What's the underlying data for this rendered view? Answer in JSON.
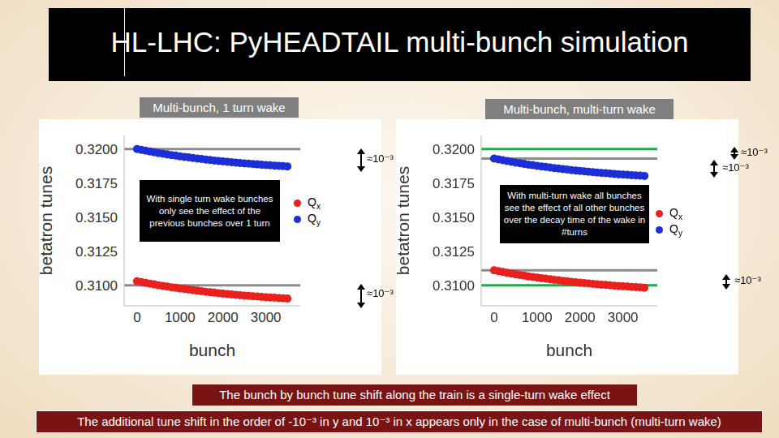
{
  "title": "HL-LHC: PyHEADTAIL multi-bunch simulation",
  "captions": [
    "The bunch by bunch tune shift along the train is a single-turn wake effect",
    "The additional tune shift in the order of -10⁻³ in y and 10⁻³ in x appears only in the case of multi-bunch (multi-turn wake)"
  ],
  "chart_data": [
    {
      "type": "scatter",
      "panel_label": "Multi-bunch, 1 turn wake",
      "xlabel": "bunch",
      "ylabel": "betatron tunes",
      "xlim": [
        -300,
        3800
      ],
      "ylim": [
        0.3085,
        0.321
      ],
      "xticks": [
        0,
        1000,
        2000,
        3000
      ],
      "yticks": [
        {
          "value": 0.31,
          "label": "0.3100"
        },
        {
          "value": 0.3125,
          "label": "0.3125"
        },
        {
          "value": 0.315,
          "label": "0.3150"
        },
        {
          "value": 0.3175,
          "label": "0.3175"
        },
        {
          "value": 0.32,
          "label": "0.3200"
        }
      ],
      "text_box": "With single turn wake bunches only see the effect of the previous bunches over 1 turn",
      "annotations": [
        "≈10⁻³",
        "≈10⁻³"
      ],
      "reference_lines": [
        {
          "y": 0.32,
          "color": "#8c8c8c"
        },
        {
          "y": 0.31,
          "color": "#8c8c8c"
        }
      ],
      "x": [
        0,
        100,
        200,
        300,
        400,
        500,
        600,
        700,
        800,
        900,
        1000,
        1100,
        1200,
        1300,
        1400,
        1500,
        1600,
        1700,
        1800,
        1900,
        2000,
        2100,
        2200,
        2300,
        2400,
        2500,
        2600,
        2700,
        2800,
        2900,
        3000,
        3100,
        3200,
        3300,
        3400,
        3500
      ],
      "series": [
        {
          "name": "Qx",
          "color": "#e8201e",
          "marker": "circle",
          "values": [
            0.3103,
            0.31024,
            0.31018,
            0.31012,
            0.31007,
            0.31001,
            0.30996,
            0.30991,
            0.30986,
            0.30982,
            0.30977,
            0.30973,
            0.30969,
            0.30965,
            0.30961,
            0.30957,
            0.30953,
            0.3095,
            0.30946,
            0.30943,
            0.3094,
            0.30937,
            0.30934,
            0.30931,
            0.30928,
            0.30925,
            0.30923,
            0.3092,
            0.30918,
            0.30915,
            0.30913,
            0.30911,
            0.30909,
            0.30907,
            0.30905,
            0.30903
          ]
        },
        {
          "name": "Qy",
          "color": "#1c2fd6",
          "marker": "circle",
          "values": [
            0.32,
            0.31994,
            0.31988,
            0.31982,
            0.31977,
            0.31971,
            0.31966,
            0.31961,
            0.31956,
            0.31952,
            0.31947,
            0.31943,
            0.31939,
            0.31935,
            0.31931,
            0.31927,
            0.31923,
            0.3192,
            0.31916,
            0.31913,
            0.3191,
            0.31907,
            0.31904,
            0.31901,
            0.31898,
            0.31895,
            0.31893,
            0.3189,
            0.31888,
            0.31885,
            0.31883,
            0.31881,
            0.31879,
            0.31877,
            0.31875,
            0.31873
          ]
        }
      ]
    },
    {
      "type": "scatter",
      "panel_label": "Multi-bunch, multi-turn wake",
      "xlabel": "bunch",
      "ylabel": "betatron tunes",
      "xlim": [
        -300,
        3800
      ],
      "ylim": [
        0.3085,
        0.321
      ],
      "xticks": [
        0,
        1000,
        2000,
        3000
      ],
      "yticks": [
        {
          "value": 0.31,
          "label": "0.3100"
        },
        {
          "value": 0.3125,
          "label": "0.3125"
        },
        {
          "value": 0.315,
          "label": "0.3150"
        },
        {
          "value": 0.3175,
          "label": "0.3175"
        },
        {
          "value": 0.32,
          "label": "0.3200"
        }
      ],
      "text_box": "With multi-turn wake all bunches see the effect of all other bunches over the decay time of the wake in #turns",
      "annotations": [
        "≈10⁻³",
        "≈10⁻³",
        "≈10⁻³"
      ],
      "reference_lines": [
        {
          "y": 0.32,
          "color": "#22a84a"
        },
        {
          "y": 0.31,
          "color": "#22a84a"
        },
        {
          "y": 0.3193,
          "color": "#8c8c8c"
        },
        {
          "y": 0.3111,
          "color": "#8c8c8c"
        }
      ],
      "x": [
        0,
        100,
        200,
        300,
        400,
        500,
        600,
        700,
        800,
        900,
        1000,
        1100,
        1200,
        1300,
        1400,
        1500,
        1600,
        1700,
        1800,
        1900,
        2000,
        2100,
        2200,
        2300,
        2400,
        2500,
        2600,
        2700,
        2800,
        2900,
        3000,
        3100,
        3200,
        3300,
        3400,
        3500
      ],
      "series": [
        {
          "name": "Qx",
          "color": "#e8201e",
          "marker": "circle",
          "values": [
            0.3111,
            0.31104,
            0.31098,
            0.31092,
            0.31087,
            0.31081,
            0.31076,
            0.31071,
            0.31066,
            0.31062,
            0.31057,
            0.31053,
            0.31049,
            0.31045,
            0.31041,
            0.31037,
            0.31033,
            0.3103,
            0.31026,
            0.31023,
            0.3102,
            0.31017,
            0.31014,
            0.31011,
            0.31008,
            0.31005,
            0.31003,
            0.31,
            0.30998,
            0.30995,
            0.30993,
            0.30991,
            0.30989,
            0.30987,
            0.30985,
            0.30983
          ]
        },
        {
          "name": "Qy",
          "color": "#1c2fd6",
          "marker": "circle",
          "values": [
            0.3193,
            0.31924,
            0.31918,
            0.31912,
            0.31907,
            0.31901,
            0.31896,
            0.31891,
            0.31886,
            0.31882,
            0.31877,
            0.31873,
            0.31869,
            0.31865,
            0.31861,
            0.31857,
            0.31853,
            0.3185,
            0.31846,
            0.31843,
            0.3184,
            0.31837,
            0.31834,
            0.31831,
            0.31828,
            0.31825,
            0.31823,
            0.3182,
            0.31818,
            0.31815,
            0.31813,
            0.31811,
            0.31809,
            0.31807,
            0.31805,
            0.31803
          ]
        }
      ]
    }
  ]
}
